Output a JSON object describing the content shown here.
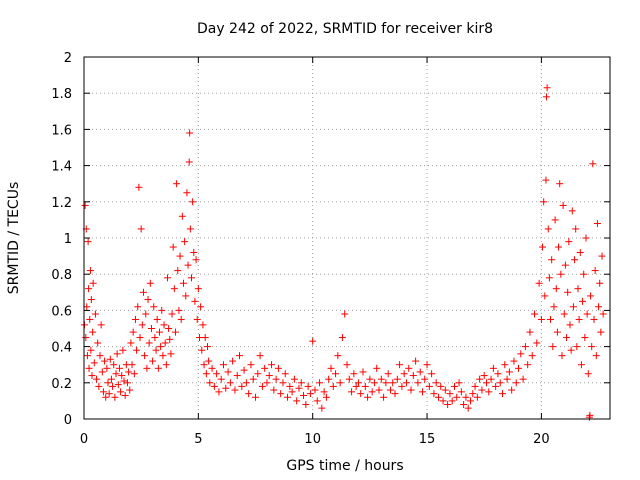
{
  "chart_data": {
    "type": "scatter",
    "title": "Day 242 of 2022, SRMTID for receiver kir8",
    "xlabel": "GPS time / hours",
    "ylabel": "SRMTID / TECUs",
    "xlim": [
      0,
      23
    ],
    "ylim": [
      0,
      2
    ],
    "x_ticks": [
      0,
      5,
      10,
      15,
      20
    ],
    "x_tick_labels": [
      "0",
      "5",
      "10",
      "15",
      "20"
    ],
    "y_ticks": [
      0,
      0.2,
      0.4,
      0.6,
      0.8,
      1,
      1.2,
      1.4,
      1.6,
      1.8,
      2
    ],
    "y_tick_labels": [
      "0",
      "0.2",
      "0.4",
      "0.6",
      "0.8",
      "1",
      "1.2",
      "1.4",
      "1.6",
      "1.8",
      "2"
    ],
    "grid": true,
    "marker": "+",
    "color": "#ff0000",
    "series": [
      {
        "name": "SRMTID",
        "points": [
          [
            0.02,
            0.52
          ],
          [
            0.05,
            1.18
          ],
          [
            0.08,
            0.45
          ],
          [
            0.1,
            1.05
          ],
          [
            0.12,
            0.62
          ],
          [
            0.15,
            0.35
          ],
          [
            0.18,
            0.98
          ],
          [
            0.2,
            0.72
          ],
          [
            0.22,
            0.28
          ],
          [
            0.25,
            0.55
          ],
          [
            0.28,
            0.82
          ],
          [
            0.3,
            0.38
          ],
          [
            0.32,
            0.66
          ],
          [
            0.35,
            0.24
          ],
          [
            0.38,
            0.48
          ],
          [
            0.4,
            0.75
          ],
          [
            0.45,
            0.31
          ],
          [
            0.5,
            0.58
          ],
          [
            0.55,
            0.22
          ],
          [
            0.6,
            0.42
          ],
          [
            0.65,
            0.18
          ],
          [
            0.7,
            0.35
          ],
          [
            0.75,
            0.52
          ],
          [
            0.8,
            0.26
          ],
          [
            0.85,
            0.15
          ],
          [
            0.9,
            0.32
          ],
          [
            0.95,
            0.12
          ],
          [
            1.0,
            0.28
          ],
          [
            1.05,
            0.2
          ],
          [
            1.1,
            0.14
          ],
          [
            1.15,
            0.33
          ],
          [
            1.2,
            0.22
          ],
          [
            1.25,
            0.18
          ],
          [
            1.3,
            0.3
          ],
          [
            1.35,
            0.12
          ],
          [
            1.4,
            0.25
          ],
          [
            1.45,
            0.36
          ],
          [
            1.5,
            0.19
          ],
          [
            1.55,
            0.28
          ],
          [
            1.6,
            0.15
          ],
          [
            1.65,
            0.24
          ],
          [
            1.7,
            0.38
          ],
          [
            1.75,
            0.21
          ],
          [
            1.8,
            0.13
          ],
          [
            1.85,
            0.3
          ],
          [
            1.9,
            0.2
          ],
          [
            1.95,
            0.26
          ],
          [
            2.0,
            0.16
          ],
          [
            2.05,
            0.42
          ],
          [
            2.1,
            0.3
          ],
          [
            2.15,
            0.48
          ],
          [
            2.2,
            0.25
          ],
          [
            2.25,
            0.55
          ],
          [
            2.3,
            0.38
          ],
          [
            2.35,
            0.62
          ],
          [
            2.4,
            1.28
          ],
          [
            2.45,
            0.45
          ],
          [
            2.5,
            1.05
          ],
          [
            2.55,
            0.52
          ],
          [
            2.6,
            0.7
          ],
          [
            2.65,
            0.35
          ],
          [
            2.7,
            0.58
          ],
          [
            2.75,
            0.28
          ],
          [
            2.8,
            0.66
          ],
          [
            2.85,
            0.42
          ],
          [
            2.9,
            0.75
          ],
          [
            2.95,
            0.5
          ],
          [
            3.0,
            0.32
          ],
          [
            3.05,
            0.62
          ],
          [
            3.1,
            0.45
          ],
          [
            3.15,
            0.38
          ],
          [
            3.2,
            0.55
          ],
          [
            3.25,
            0.28
          ],
          [
            3.3,
            0.48
          ],
          [
            3.35,
            0.4
          ],
          [
            3.4,
            0.6
          ],
          [
            3.45,
            0.35
          ],
          [
            3.5,
            0.52
          ],
          [
            3.55,
            0.42
          ],
          [
            3.6,
            0.3
          ],
          [
            3.65,
            0.78
          ],
          [
            3.7,
            0.5
          ],
          [
            3.75,
            0.44
          ],
          [
            3.8,
            0.36
          ],
          [
            3.85,
            0.58
          ],
          [
            3.9,
            0.95
          ],
          [
            3.95,
            0.72
          ],
          [
            4.0,
            0.48
          ],
          [
            4.05,
            1.3
          ],
          [
            4.1,
            0.82
          ],
          [
            4.15,
            0.6
          ],
          [
            4.2,
            0.9
          ],
          [
            4.25,
            0.55
          ],
          [
            4.3,
            1.12
          ],
          [
            4.35,
            0.75
          ],
          [
            4.4,
            0.98
          ],
          [
            4.45,
            0.68
          ],
          [
            4.5,
            1.25
          ],
          [
            4.55,
            0.85
          ],
          [
            4.6,
            1.42
          ],
          [
            4.62,
            1.58
          ],
          [
            4.65,
            1.05
          ],
          [
            4.7,
            0.78
          ],
          [
            4.75,
            1.2
          ],
          [
            4.8,
            0.92
          ],
          [
            4.85,
            0.65
          ],
          [
            4.9,
            0.88
          ],
          [
            4.95,
            0.55
          ],
          [
            5.0,
            0.72
          ],
          [
            5.05,
            0.45
          ],
          [
            5.1,
            0.62
          ],
          [
            5.15,
            0.38
          ],
          [
            5.2,
            0.52
          ],
          [
            5.25,
            0.3
          ],
          [
            5.3,
            0.45
          ],
          [
            5.35,
            0.25
          ],
          [
            5.4,
            0.4
          ],
          [
            5.45,
            0.32
          ],
          [
            5.5,
            0.2
          ],
          [
            5.6,
            0.28
          ],
          [
            5.7,
            0.18
          ],
          [
            5.8,
            0.25
          ],
          [
            5.9,
            0.15
          ],
          [
            6.0,
            0.22
          ],
          [
            6.1,
            0.3
          ],
          [
            6.2,
            0.17
          ],
          [
            6.3,
            0.26
          ],
          [
            6.4,
            0.2
          ],
          [
            6.5,
            0.32
          ],
          [
            6.6,
            0.16
          ],
          [
            6.7,
            0.24
          ],
          [
            6.8,
            0.35
          ],
          [
            6.9,
            0.18
          ],
          [
            7.0,
            0.27
          ],
          [
            7.1,
            0.2
          ],
          [
            7.2,
            0.14
          ],
          [
            7.3,
            0.3
          ],
          [
            7.4,
            0.22
          ],
          [
            7.5,
            0.12
          ],
          [
            7.6,
            0.25
          ],
          [
            7.7,
            0.35
          ],
          [
            7.8,
            0.18
          ],
          [
            7.9,
            0.28
          ],
          [
            8.0,
            0.2
          ],
          [
            8.1,
            0.24
          ],
          [
            8.2,
            0.3
          ],
          [
            8.3,
            0.16
          ],
          [
            8.4,
            0.22
          ],
          [
            8.5,
            0.28
          ],
          [
            8.6,
            0.14
          ],
          [
            8.7,
            0.2
          ],
          [
            8.8,
            0.25
          ],
          [
            8.9,
            0.12
          ],
          [
            9.0,
            0.18
          ],
          [
            9.1,
            0.15
          ],
          [
            9.2,
            0.22
          ],
          [
            9.3,
            0.1
          ],
          [
            9.4,
            0.17
          ],
          [
            9.5,
            0.2
          ],
          [
            9.6,
            0.13
          ],
          [
            9.7,
            0.08
          ],
          [
            9.8,
            0.18
          ],
          [
            9.9,
            0.14
          ],
          [
            10.0,
            0.43
          ],
          [
            10.1,
            0.16
          ],
          [
            10.2,
            0.1
          ],
          [
            10.3,
            0.2
          ],
          [
            10.4,
            0.06
          ],
          [
            10.5,
            0.15
          ],
          [
            10.6,
            0.12
          ],
          [
            10.7,
            0.22
          ],
          [
            10.8,
            0.28
          ],
          [
            10.9,
            0.18
          ],
          [
            11.0,
            0.25
          ],
          [
            11.1,
            0.35
          ],
          [
            11.2,
            0.2
          ],
          [
            11.3,
            0.45
          ],
          [
            11.4,
            0.58
          ],
          [
            11.5,
            0.3
          ],
          [
            11.6,
            0.22
          ],
          [
            11.7,
            0.15
          ],
          [
            11.8,
            0.25
          ],
          [
            11.9,
            0.18
          ],
          [
            12.0,
            0.2
          ],
          [
            12.1,
            0.14
          ],
          [
            12.2,
            0.26
          ],
          [
            12.3,
            0.18
          ],
          [
            12.4,
            0.12
          ],
          [
            12.5,
            0.22
          ],
          [
            12.6,
            0.15
          ],
          [
            12.7,
            0.2
          ],
          [
            12.8,
            0.28
          ],
          [
            12.9,
            0.16
          ],
          [
            13.0,
            0.22
          ],
          [
            13.1,
            0.12
          ],
          [
            13.2,
            0.2
          ],
          [
            13.3,
            0.25
          ],
          [
            13.4,
            0.16
          ],
          [
            13.5,
            0.2
          ],
          [
            13.6,
            0.14
          ],
          [
            13.7,
            0.22
          ],
          [
            13.8,
            0.3
          ],
          [
            13.9,
            0.18
          ],
          [
            14.0,
            0.25
          ],
          [
            14.1,
            0.2
          ],
          [
            14.2,
            0.28
          ],
          [
            14.3,
            0.16
          ],
          [
            14.4,
            0.24
          ],
          [
            14.5,
            0.32
          ],
          [
            14.6,
            0.2
          ],
          [
            14.7,
            0.26
          ],
          [
            14.8,
            0.15
          ],
          [
            14.9,
            0.22
          ],
          [
            15.0,
            0.3
          ],
          [
            15.1,
            0.18
          ],
          [
            15.2,
            0.25
          ],
          [
            15.3,
            0.14
          ],
          [
            15.4,
            0.2
          ],
          [
            15.5,
            0.12
          ],
          [
            15.6,
            0.18
          ],
          [
            15.7,
            0.1
          ],
          [
            15.8,
            0.16
          ],
          [
            15.9,
            0.08
          ],
          [
            16.0,
            0.14
          ],
          [
            16.1,
            0.1
          ],
          [
            16.2,
            0.18
          ],
          [
            16.3,
            0.12
          ],
          [
            16.4,
            0.2
          ],
          [
            16.5,
            0.15
          ],
          [
            16.6,
            0.08
          ],
          [
            16.7,
            0.12
          ],
          [
            16.8,
            0.06
          ],
          [
            16.9,
            0.1
          ],
          [
            17.0,
            0.14
          ],
          [
            17.1,
            0.18
          ],
          [
            17.2,
            0.12
          ],
          [
            17.3,
            0.22
          ],
          [
            17.4,
            0.16
          ],
          [
            17.5,
            0.24
          ],
          [
            17.6,
            0.2
          ],
          [
            17.7,
            0.15
          ],
          [
            17.8,
            0.22
          ],
          [
            17.9,
            0.28
          ],
          [
            18.0,
            0.18
          ],
          [
            18.1,
            0.25
          ],
          [
            18.2,
            0.2
          ],
          [
            18.3,
            0.14
          ],
          [
            18.4,
            0.3
          ],
          [
            18.5,
            0.22
          ],
          [
            18.6,
            0.26
          ],
          [
            18.7,
            0.16
          ],
          [
            18.8,
            0.32
          ],
          [
            18.9,
            0.2
          ],
          [
            19.0,
            0.28
          ],
          [
            19.1,
            0.36
          ],
          [
            19.2,
            0.22
          ],
          [
            19.3,
            0.4
          ],
          [
            19.4,
            0.3
          ],
          [
            19.5,
            0.48
          ],
          [
            19.6,
            0.35
          ],
          [
            19.7,
            0.58
          ],
          [
            19.8,
            0.42
          ],
          [
            19.9,
            0.75
          ],
          [
            20.0,
            0.55
          ],
          [
            20.05,
            0.95
          ],
          [
            20.1,
            1.2
          ],
          [
            20.15,
            0.68
          ],
          [
            20.2,
            1.32
          ],
          [
            20.22,
            1.78
          ],
          [
            20.25,
            1.83
          ],
          [
            20.3,
            1.05
          ],
          [
            20.35,
            0.78
          ],
          [
            20.4,
            0.55
          ],
          [
            20.45,
            0.88
          ],
          [
            20.5,
            0.4
          ],
          [
            20.55,
            0.62
          ],
          [
            20.6,
            1.1
          ],
          [
            20.65,
            0.72
          ],
          [
            20.7,
            0.48
          ],
          [
            20.75,
            0.95
          ],
          [
            20.8,
            1.3
          ],
          [
            20.85,
            0.8
          ],
          [
            20.9,
            0.35
          ],
          [
            20.95,
            1.18
          ],
          [
            21.0,
            0.58
          ],
          [
            21.05,
            0.85
          ],
          [
            21.1,
            0.45
          ],
          [
            21.15,
            0.7
          ],
          [
            21.2,
            0.98
          ],
          [
            21.25,
            0.52
          ],
          [
            21.3,
            0.38
          ],
          [
            21.35,
            1.15
          ],
          [
            21.4,
            0.62
          ],
          [
            21.45,
            0.88
          ],
          [
            21.5,
            1.05
          ],
          [
            21.55,
            0.4
          ],
          [
            21.6,
            0.72
          ],
          [
            21.65,
            0.55
          ],
          [
            21.7,
            0.92
          ],
          [
            21.75,
            0.3
          ],
          [
            21.8,
            0.65
          ],
          [
            21.85,
            0.8
          ],
          [
            21.9,
            0.45
          ],
          [
            21.95,
            1.0
          ],
          [
            22.0,
            0.58
          ],
          [
            22.05,
            0.25
          ],
          [
            22.1,
            0.01
          ],
          [
            22.12,
            0.02
          ],
          [
            22.15,
            0.68
          ],
          [
            22.2,
            0.4
          ],
          [
            22.25,
            1.41
          ],
          [
            22.3,
            0.55
          ],
          [
            22.35,
            0.82
          ],
          [
            22.4,
            0.35
          ],
          [
            22.45,
            1.08
          ],
          [
            22.5,
            0.62
          ],
          [
            22.55,
            0.75
          ],
          [
            22.6,
            0.48
          ],
          [
            22.65,
            0.9
          ],
          [
            22.7,
            0.58
          ]
        ]
      }
    ]
  }
}
